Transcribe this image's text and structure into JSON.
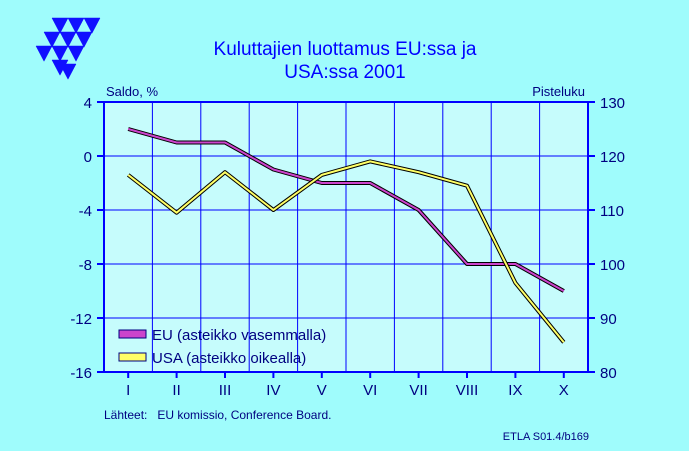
{
  "colors": {
    "background": "#9ffcfc",
    "plot_background": "#c6fcfc",
    "axis": "#0000ff",
    "text": "#000080",
    "title": "#0000ff",
    "eu": "#cc44cc",
    "usa": "#ffff66",
    "logo": "#1010ff"
  },
  "logo": {
    "icon": "etla-triangles-logo"
  },
  "chart_data": {
    "type": "line",
    "title": "Kuluttajien luottamus EU:ssa ja USA:ssa 2001",
    "title_lines": [
      "Kuluttajien  luottamus  EU:ssa  ja",
      "USA:ssa  2001"
    ],
    "categories": [
      "I",
      "II",
      "III",
      "IV",
      "V",
      "VI",
      "VII",
      "VIII",
      "IX",
      "X"
    ],
    "ylabel_left": "Saldo, %",
    "ylabel_right": "Pisteluku",
    "ylim_left": [
      -16,
      4
    ],
    "ylim_right": [
      80,
      130
    ],
    "yticks_left": [
      "4",
      "0",
      "-4",
      "-8",
      "-12",
      "-16"
    ],
    "yticks_right": [
      "130",
      "120",
      "110",
      "100",
      "90",
      "80"
    ],
    "grid": true,
    "legend_position": "bottom-left",
    "series": [
      {
        "name": "EU (asteikko vasemmalla)",
        "axis": "left",
        "values": [
          2,
          1,
          1,
          -1,
          -2,
          -2,
          -4,
          -8,
          -8,
          -10
        ]
      },
      {
        "name": "USA (asteikko oikealla)",
        "axis": "right",
        "values": [
          116.5,
          109.5,
          117,
          110,
          116.5,
          119,
          117,
          114.5,
          96.5,
          85.5
        ]
      }
    ]
  },
  "footer": {
    "sources": "Lähteet:   EU komissio, Conference Board.",
    "code": "ETLA S01.4/b169"
  }
}
